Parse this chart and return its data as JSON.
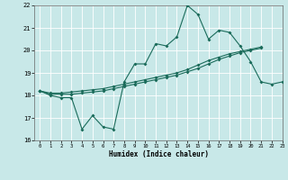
{
  "title": "",
  "xlabel": "Humidex (Indice chaleur)",
  "background_color": "#c8e8e8",
  "grid_color": "#ffffff",
  "line_color": "#1a6b5a",
  "x_values": [
    0,
    1,
    2,
    3,
    4,
    5,
    6,
    7,
    8,
    9,
    10,
    11,
    12,
    13,
    14,
    15,
    16,
    17,
    18,
    19,
    20,
    21,
    22,
    23
  ],
  "series1": [
    18.2,
    18.0,
    17.9,
    17.9,
    16.5,
    17.1,
    16.6,
    16.5,
    18.6,
    19.4,
    19.4,
    20.3,
    20.2,
    20.6,
    22.0,
    21.6,
    20.5,
    20.9,
    20.8,
    20.2,
    19.5,
    18.6,
    18.5,
    18.6
  ],
  "series2": [
    18.2,
    18.1,
    18.1,
    18.15,
    18.2,
    18.25,
    18.3,
    18.4,
    18.5,
    18.6,
    18.7,
    18.8,
    18.9,
    19.0,
    19.15,
    19.35,
    19.55,
    19.7,
    19.85,
    19.95,
    20.05,
    20.15,
    18.6,
    18.6
  ],
  "series3": [
    18.2,
    18.05,
    18.05,
    18.05,
    18.1,
    18.15,
    18.2,
    18.3,
    18.4,
    18.5,
    18.6,
    18.7,
    18.8,
    18.9,
    19.05,
    19.2,
    19.4,
    19.6,
    19.75,
    19.9,
    20.0,
    20.1,
    18.6,
    18.6
  ],
  "ylim": [
    16,
    22
  ],
  "xlim": [
    -0.5,
    23
  ],
  "yticks": [
    16,
    17,
    18,
    19,
    20,
    21,
    22
  ],
  "xticks": [
    0,
    1,
    2,
    3,
    4,
    5,
    6,
    7,
    8,
    9,
    10,
    11,
    12,
    13,
    14,
    15,
    16,
    17,
    18,
    19,
    20,
    21,
    22,
    23
  ]
}
